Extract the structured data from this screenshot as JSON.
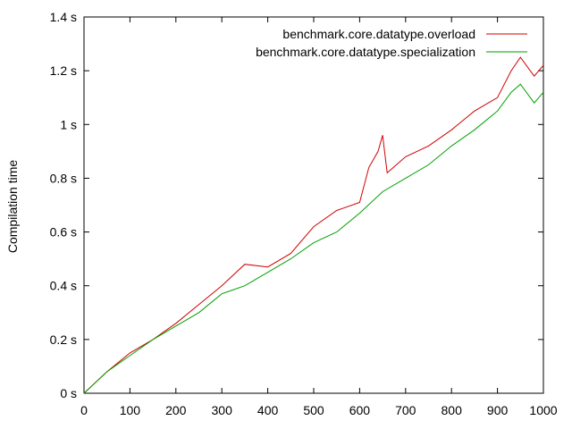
{
  "chart_data": {
    "type": "line",
    "title": "",
    "xlabel": "",
    "ylabel": "Compilation time",
    "xlim": [
      0,
      1000
    ],
    "ylim": [
      0,
      1.4
    ],
    "xticks": [
      0,
      100,
      200,
      300,
      400,
      500,
      600,
      700,
      800,
      900,
      1000
    ],
    "xtick_labels": [
      "0",
      "100",
      "200",
      "300",
      "400",
      "500",
      "600",
      "700",
      "800",
      "900",
      "1000"
    ],
    "yticks": [
      0,
      0.2,
      0.4,
      0.6,
      0.8,
      1.0,
      1.2,
      1.4
    ],
    "ytick_labels": [
      "0 s",
      "0.2 s",
      "0.4 s",
      "0.6 s",
      "0.8 s",
      "1 s",
      "1.2 s",
      "1.4 s"
    ],
    "grid": false,
    "legend_position": "top-right",
    "series": [
      {
        "name": "benchmark.core.datatype.overload",
        "color": "#d00000",
        "x": [
          0,
          50,
          100,
          150,
          200,
          250,
          300,
          350,
          400,
          450,
          500,
          550,
          600,
          620,
          640,
          650,
          660,
          700,
          750,
          800,
          850,
          900,
          930,
          950,
          980,
          1000
        ],
        "y": [
          0.0,
          0.08,
          0.15,
          0.2,
          0.26,
          0.33,
          0.4,
          0.48,
          0.47,
          0.52,
          0.62,
          0.68,
          0.71,
          0.84,
          0.9,
          0.96,
          0.82,
          0.88,
          0.92,
          0.98,
          1.05,
          1.1,
          1.2,
          1.25,
          1.18,
          1.22
        ]
      },
      {
        "name": "benchmark.core.datatype.specialization",
        "color": "#00a000",
        "x": [
          0,
          50,
          100,
          150,
          200,
          250,
          300,
          350,
          400,
          450,
          500,
          550,
          600,
          650,
          700,
          750,
          800,
          850,
          900,
          930,
          950,
          980,
          1000
        ],
        "y": [
          0.0,
          0.08,
          0.14,
          0.2,
          0.25,
          0.3,
          0.37,
          0.4,
          0.45,
          0.5,
          0.56,
          0.6,
          0.67,
          0.75,
          0.8,
          0.85,
          0.92,
          0.98,
          1.05,
          1.12,
          1.15,
          1.08,
          1.12
        ]
      }
    ]
  }
}
